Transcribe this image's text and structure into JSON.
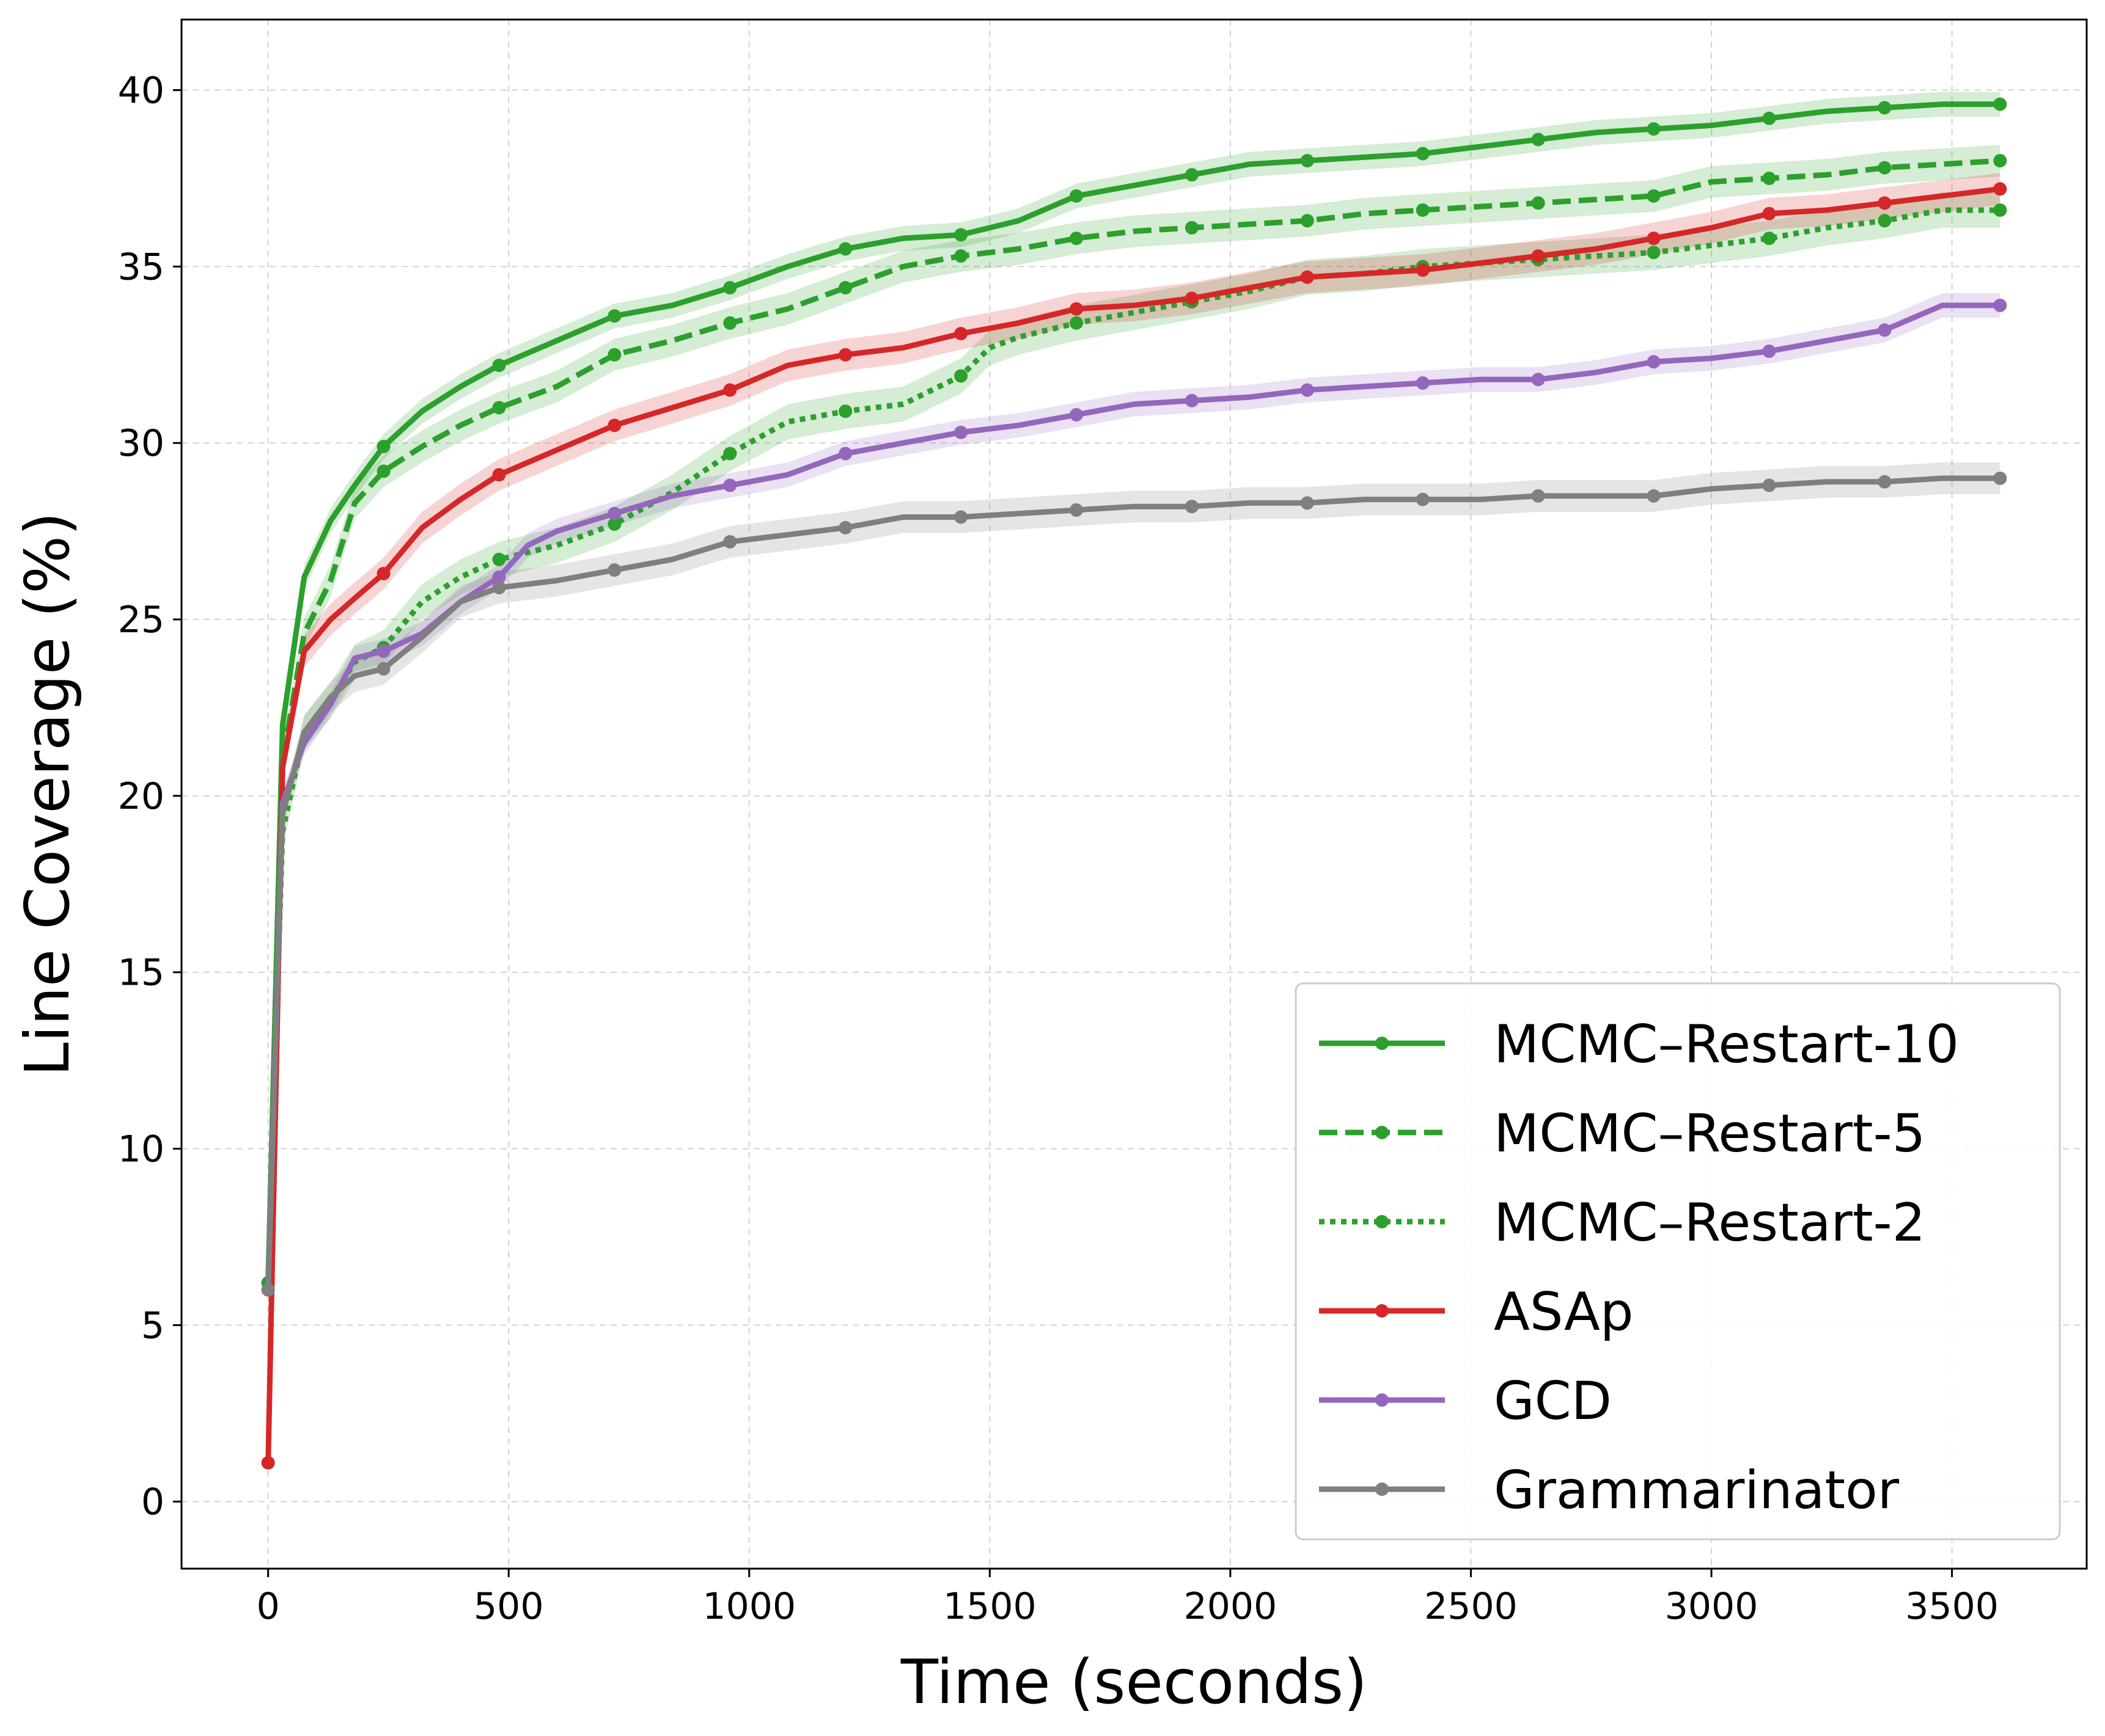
{
  "chart_data": {
    "type": "line",
    "xlabel": "Time (seconds)",
    "ylabel": "Line Coverage (%)",
    "xlim": [
      -180,
      3780
    ],
    "ylim": [
      -1.9,
      42.0
    ],
    "xticks": [
      0,
      500,
      1000,
      1500,
      2000,
      2500,
      3000,
      3500
    ],
    "yticks": [
      0,
      5,
      10,
      15,
      20,
      25,
      30,
      35,
      40
    ],
    "grid": true,
    "legend_position": "lower-right",
    "series": [
      {
        "name": "MCMC–Restart-10",
        "color": "#2ca02c",
        "linestyle": "solid",
        "band": 0.35,
        "x": [
          0,
          30,
          75,
          130,
          180,
          240,
          320,
          400,
          480,
          600,
          720,
          840,
          960,
          1080,
          1200,
          1320,
          1440,
          1560,
          1680,
          1800,
          1920,
          2040,
          2160,
          2280,
          2400,
          2520,
          2640,
          2760,
          2880,
          3000,
          3120,
          3240,
          3360,
          3480,
          3600
        ],
        "y": [
          6.2,
          22.0,
          26.2,
          27.8,
          28.8,
          29.9,
          30.9,
          31.6,
          32.2,
          32.9,
          33.6,
          33.9,
          34.4,
          35.0,
          35.5,
          35.8,
          35.9,
          36.3,
          37.0,
          37.3,
          37.6,
          37.9,
          38.0,
          38.1,
          38.2,
          38.4,
          38.6,
          38.8,
          38.9,
          39.0,
          39.2,
          39.4,
          39.5,
          39.6,
          39.6
        ],
        "markers": [
          0,
          240,
          480,
          720,
          960,
          1200,
          1440,
          1680,
          1920,
          2160,
          2400,
          2640,
          2880,
          3120,
          3360,
          3600
        ]
      },
      {
        "name": "MCMC–Restart-5",
        "color": "#2ca02c",
        "linestyle": "dashed",
        "band": 0.45,
        "x": [
          0,
          30,
          75,
          130,
          180,
          240,
          320,
          400,
          480,
          600,
          720,
          840,
          960,
          1080,
          1200,
          1320,
          1440,
          1560,
          1680,
          1800,
          1920,
          2040,
          2160,
          2280,
          2400,
          2520,
          2640,
          2760,
          2880,
          3000,
          3120,
          3240,
          3360,
          3480,
          3600
        ],
        "y": [
          6.2,
          21.0,
          24.6,
          26.1,
          28.3,
          29.2,
          29.9,
          30.5,
          31.0,
          31.6,
          32.5,
          32.9,
          33.4,
          33.8,
          34.4,
          35.0,
          35.3,
          35.5,
          35.8,
          36.0,
          36.1,
          36.2,
          36.3,
          36.5,
          36.6,
          36.7,
          36.8,
          36.9,
          37.0,
          37.4,
          37.5,
          37.6,
          37.8,
          37.9,
          38.0
        ],
        "markers": [
          0,
          240,
          480,
          720,
          960,
          1200,
          1440,
          1680,
          1920,
          2160,
          2400,
          2640,
          2880,
          3120,
          3360,
          3600
        ]
      },
      {
        "name": "MCMC–Restart-2",
        "color": "#2ca02c",
        "linestyle": "dotted",
        "band": 0.5,
        "x": [
          0,
          30,
          75,
          130,
          180,
          240,
          320,
          400,
          480,
          600,
          720,
          840,
          960,
          1080,
          1200,
          1320,
          1440,
          1500,
          1560,
          1680,
          1800,
          1920,
          2040,
          2160,
          2280,
          2400,
          2520,
          2640,
          2760,
          2880,
          3000,
          3120,
          3240,
          3360,
          3480,
          3600
        ],
        "y": [
          6.2,
          19.0,
          21.8,
          22.7,
          23.8,
          24.2,
          25.5,
          26.2,
          26.7,
          27.1,
          27.7,
          28.6,
          29.7,
          30.6,
          30.9,
          31.1,
          31.9,
          32.7,
          33.0,
          33.4,
          33.7,
          34.0,
          34.3,
          34.7,
          34.8,
          35.0,
          35.1,
          35.2,
          35.3,
          35.4,
          35.6,
          35.8,
          36.1,
          36.3,
          36.6,
          36.6
        ],
        "markers": [
          0,
          240,
          480,
          720,
          960,
          1200,
          1440,
          1680,
          1920,
          2160,
          2400,
          2640,
          2880,
          3120,
          3360,
          3600
        ]
      },
      {
        "name": "ASAp",
        "color": "#d62728",
        "linestyle": "solid",
        "band": 0.45,
        "x": [
          0,
          30,
          75,
          130,
          180,
          240,
          320,
          400,
          480,
          600,
          720,
          840,
          960,
          1080,
          1200,
          1320,
          1440,
          1560,
          1680,
          1800,
          1920,
          2040,
          2160,
          2280,
          2400,
          2520,
          2640,
          2760,
          2880,
          3000,
          3120,
          3240,
          3360,
          3480,
          3600
        ],
        "y": [
          1.1,
          20.8,
          24.1,
          25.0,
          25.6,
          26.3,
          27.6,
          28.4,
          29.1,
          29.8,
          30.5,
          31.0,
          31.5,
          32.2,
          32.5,
          32.7,
          33.1,
          33.4,
          33.8,
          33.9,
          34.1,
          34.4,
          34.7,
          34.8,
          34.9,
          35.1,
          35.3,
          35.5,
          35.8,
          36.1,
          36.5,
          36.6,
          36.8,
          37.0,
          37.2
        ],
        "markers": [
          0,
          240,
          480,
          720,
          960,
          1200,
          1440,
          1680,
          1920,
          2160,
          2400,
          2640,
          2880,
          3120,
          3360,
          3600
        ]
      },
      {
        "name": "GCD",
        "color": "#9467bd",
        "linestyle": "solid",
        "band": 0.35,
        "x": [
          0,
          30,
          75,
          130,
          180,
          240,
          320,
          400,
          480,
          540,
          600,
          720,
          840,
          960,
          1080,
          1200,
          1320,
          1440,
          1560,
          1680,
          1800,
          1920,
          2040,
          2160,
          2280,
          2400,
          2520,
          2640,
          2760,
          2880,
          3000,
          3120,
          3240,
          3360,
          3480,
          3600
        ],
        "y": [
          6.0,
          19.8,
          21.5,
          22.6,
          23.9,
          24.1,
          24.6,
          25.5,
          26.2,
          27.1,
          27.5,
          28.0,
          28.5,
          28.8,
          29.1,
          29.7,
          30.0,
          30.3,
          30.5,
          30.8,
          31.1,
          31.2,
          31.3,
          31.5,
          31.6,
          31.7,
          31.8,
          31.8,
          32.0,
          32.3,
          32.4,
          32.6,
          32.9,
          33.2,
          33.9,
          33.9
        ],
        "markers": [
          0,
          240,
          480,
          720,
          960,
          1200,
          1440,
          1680,
          1920,
          2160,
          2400,
          2640,
          2880,
          3120,
          3360,
          3600
        ]
      },
      {
        "name": "Grammarinator",
        "color": "#7f7f7f",
        "linestyle": "solid",
        "band": 0.45,
        "x": [
          0,
          30,
          75,
          130,
          180,
          240,
          320,
          400,
          480,
          600,
          720,
          840,
          960,
          1080,
          1200,
          1320,
          1440,
          1560,
          1680,
          1800,
          1920,
          2040,
          2160,
          2280,
          2400,
          2520,
          2640,
          2760,
          2880,
          3000,
          3120,
          3240,
          3360,
          3480,
          3600
        ],
        "y": [
          6.0,
          19.5,
          21.8,
          22.8,
          23.4,
          23.6,
          24.5,
          25.5,
          25.9,
          26.1,
          26.4,
          26.7,
          27.2,
          27.4,
          27.6,
          27.9,
          27.9,
          28.0,
          28.1,
          28.2,
          28.2,
          28.3,
          28.3,
          28.4,
          28.4,
          28.4,
          28.5,
          28.5,
          28.5,
          28.7,
          28.8,
          28.9,
          28.9,
          29.0,
          29.0
        ],
        "markers": [
          0,
          240,
          480,
          720,
          960,
          1200,
          1440,
          1680,
          1920,
          2160,
          2400,
          2640,
          2880,
          3120,
          3360,
          3600
        ]
      }
    ]
  }
}
